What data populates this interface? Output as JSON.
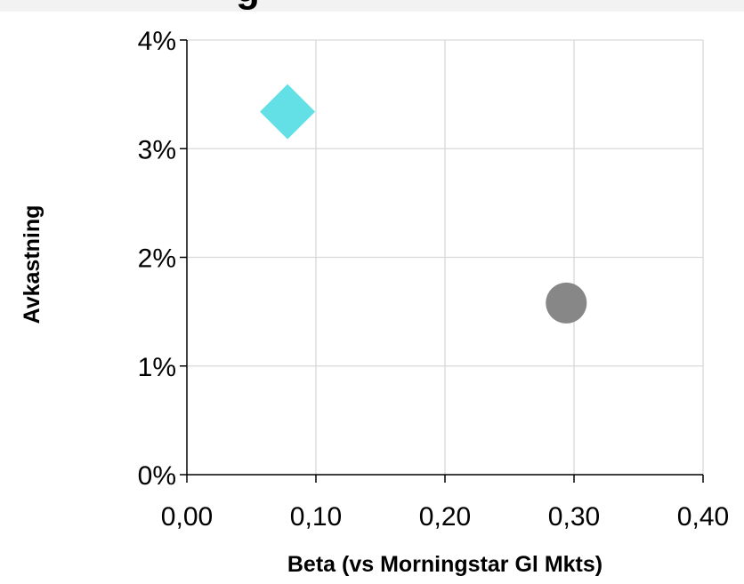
{
  "chart_data": {
    "type": "scatter",
    "title": "g",
    "xlabel": "Beta (vs Morningstar Gl Mkts)",
    "ylabel": "Avkastning",
    "xlim": [
      0,
      0.4
    ],
    "ylim": [
      0,
      0.04
    ],
    "x_ticks": [
      0,
      0.1,
      0.2,
      0.3,
      0.4
    ],
    "x_tick_labels": [
      "0,00",
      "0,10",
      "0,20",
      "0,30",
      "0,40"
    ],
    "y_ticks": [
      0,
      0.01,
      0.02,
      0.03,
      0.04
    ],
    "y_tick_labels": [
      "0%",
      "1%",
      "2%",
      "3%",
      "4%"
    ],
    "grid": true,
    "series": [
      {
        "marker": "diamond",
        "color": "#63e0e6",
        "points": [
          {
            "x": 0.078,
            "y": 0.0334
          }
        ]
      },
      {
        "marker": "circle",
        "color": "#878787",
        "points": [
          {
            "x": 0.294,
            "y": 0.0158
          }
        ]
      }
    ]
  }
}
